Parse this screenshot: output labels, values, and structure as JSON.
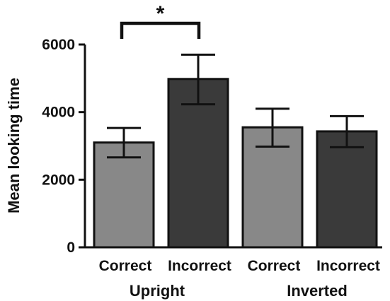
{
  "chart_data": {
    "type": "bar",
    "title": "",
    "xlabel": "",
    "ylabel": "Mean looking time",
    "ylim": [
      0,
      6000
    ],
    "yticks": [
      "0",
      "2000",
      "4000",
      "6000"
    ],
    "ytick_values": [
      0,
      2000,
      4000,
      6000
    ],
    "grid": false,
    "categories": [
      "Correct",
      "Incorrect",
      "Correct",
      "Incorrect"
    ],
    "groups": [
      {
        "label": "Upright",
        "category_indices": [
          0,
          1
        ]
      },
      {
        "label": "Inverted",
        "category_indices": [
          2,
          3
        ]
      }
    ],
    "values": [
      3100,
      4980,
      3550,
      3430
    ],
    "error_upper": [
      3530,
      5700,
      4100,
      3880
    ],
    "error_lower": [
      2660,
      4230,
      2980,
      2960
    ],
    "bar_colors": [
      "#888888",
      "#3a3a3a",
      "#888888",
      "#3a3a3a"
    ],
    "significance": [
      {
        "from": 0,
        "to": 1,
        "label": "*"
      }
    ]
  }
}
